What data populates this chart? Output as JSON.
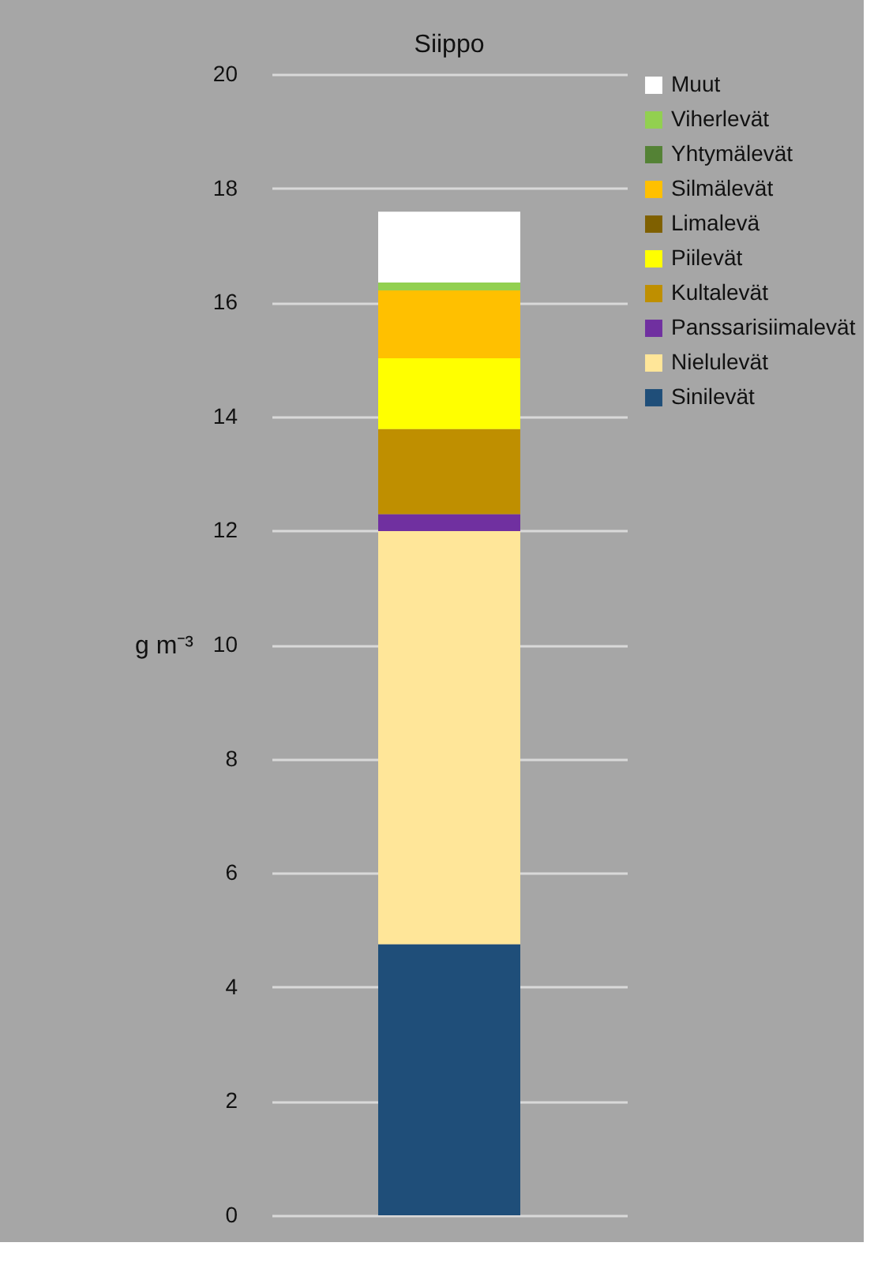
{
  "chart_data": {
    "type": "bar",
    "title": "Siippo",
    "ylabel": "g m⁻³",
    "categories": [
      null
    ],
    "stacked": true,
    "series": [
      {
        "name": "Sinilevät",
        "color": "#1f4e79",
        "values": [
          4.75
        ]
      },
      {
        "name": "Nielulevät",
        "color": "#ffe699",
        "values": [
          7.24
        ]
      },
      {
        "name": "Panssarisiimalevät",
        "color": "#7030a0",
        "values": [
          0.3
        ]
      },
      {
        "name": "Kultalevät",
        "color": "#bf8f00",
        "values": [
          1.49
        ]
      },
      {
        "name": "Piilevät",
        "color": "#ffff00",
        "values": [
          1.24
        ]
      },
      {
        "name": "Limalevä",
        "color": "#7f6000",
        "values": [
          0
        ]
      },
      {
        "name": "Silmälevät",
        "color": "#ffc000",
        "values": [
          1.19
        ]
      },
      {
        "name": "Yhtymälevät",
        "color": "#548235",
        "values": [
          0
        ]
      },
      {
        "name": "Viherlevät",
        "color": "#92d050",
        "values": [
          0.14
        ]
      },
      {
        "name": "Muut",
        "color": "#ffffff",
        "values": [
          1.24
        ]
      }
    ],
    "ylim": [
      0,
      20
    ],
    "yticks": [
      0,
      2,
      4,
      6,
      8,
      10,
      12,
      14,
      16,
      18,
      20
    ],
    "grid": "y",
    "legend": "right"
  }
}
